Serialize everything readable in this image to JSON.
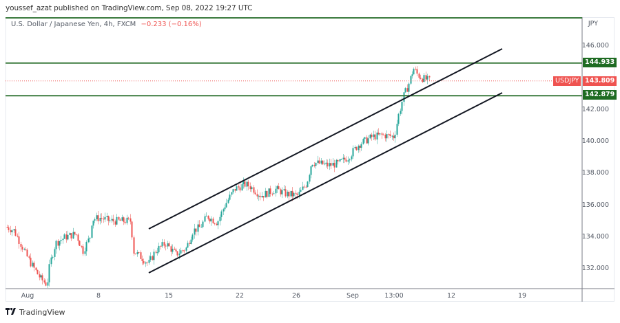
{
  "header": {
    "published_text": "youssef_azat published on TradingView.com, Sep 08, 2022 19:27 UTC"
  },
  "legend": {
    "title": "U.S. Dollar / Japanese Yen, 4h, FXCM",
    "change": "−0.233 (−0.16%)"
  },
  "price_scale": {
    "currency": "JPY",
    "ticks": [
      "146.000",
      "142.000",
      "140.000",
      "138.000",
      "136.000",
      "134.000",
      "132.000"
    ]
  },
  "tags": {
    "resistance": "144.933",
    "current_symbol": "USDJPY",
    "current_price": "143.809",
    "support": "142.879"
  },
  "time_scale": {
    "ticks": [
      "Aug",
      "8",
      "15",
      "22",
      "26",
      "Sep",
      "13:00",
      "12",
      "19"
    ]
  },
  "footer": {
    "brand": "TradingView"
  },
  "colors": {
    "up": "#26a69a",
    "down": "#ef5350",
    "level_line": "#3b7a3e",
    "level_tag": "#1e6b22",
    "channel": "#131722",
    "price_tag": "#ef5350"
  },
  "chart_data": {
    "type": "candlestick",
    "title": "U.S. Dollar / Japanese Yen, 4h, FXCM",
    "symbol": "USDJPY",
    "timeframe": "4h",
    "last_price": 143.809,
    "change": -0.233,
    "change_pct": -0.16,
    "ylim": [
      130.8,
      147.7
    ],
    "y_ticks": [
      132,
      134,
      136,
      138,
      140,
      142,
      146
    ],
    "x_ticks": [
      "Aug",
      "8",
      "15",
      "22",
      "26",
      "Sep",
      "13:00",
      "12",
      "19"
    ],
    "price_path_keypoints": [
      {
        "x": "Jul 29",
        "close": 134.6
      },
      {
        "x": "Jul 30",
        "close": 134.4
      },
      {
        "x": "Aug 1",
        "close": 133.1
      },
      {
        "x": "Aug 1",
        "close": 132.3
      },
      {
        "x": "Aug 2",
        "close": 131.4
      },
      {
        "x": "Aug 2",
        "close": 131.0
      },
      {
        "x": "Aug 3",
        "close": 132.3
      },
      {
        "x": "Aug 3",
        "close": 133.6
      },
      {
        "x": "Aug 4",
        "close": 134.0
      },
      {
        "x": "Aug 5",
        "close": 134.2
      },
      {
        "x": "Aug 6",
        "close": 133.1
      },
      {
        "x": "Aug 7",
        "close": 134.0
      },
      {
        "x": "Aug 8",
        "close": 135.1
      },
      {
        "x": "Aug 8",
        "close": 135.2
      },
      {
        "x": "Aug 9",
        "close": 135.0
      },
      {
        "x": "Aug 10",
        "close": 135.0
      },
      {
        "x": "Aug 11",
        "close": 135.0
      },
      {
        "x": "Aug 11",
        "close": 133.1
      },
      {
        "x": "Aug 12",
        "close": 132.7
      },
      {
        "x": "Aug 13",
        "close": 132.3
      },
      {
        "x": "Aug 14",
        "close": 133.1
      },
      {
        "x": "Aug 15",
        "close": 133.6
      },
      {
        "x": "Aug 15",
        "close": 132.9
      },
      {
        "x": "Aug 16",
        "close": 133.3
      },
      {
        "x": "Aug 17",
        "close": 134.4
      },
      {
        "x": "Aug 18",
        "close": 134.6
      },
      {
        "x": "Aug 18",
        "close": 135.3
      },
      {
        "x": "Aug 19",
        "close": 134.9
      },
      {
        "x": "Aug 20",
        "close": 135.9
      },
      {
        "x": "Aug 21",
        "close": 137.0
      },
      {
        "x": "Aug 22",
        "close": 137.3
      },
      {
        "x": "Aug 23",
        "close": 137.2
      },
      {
        "x": "Aug 24",
        "close": 136.6
      },
      {
        "x": "Aug 24",
        "close": 136.7
      },
      {
        "x": "Aug 25",
        "close": 137.0
      },
      {
        "x": "Aug 26",
        "close": 136.7
      },
      {
        "x": "Aug 27",
        "close": 136.6
      },
      {
        "x": "Aug 28",
        "close": 137.4
      },
      {
        "x": "Aug 29",
        "close": 138.7
      },
      {
        "x": "Aug 29",
        "close": 138.6
      },
      {
        "x": "Aug 30",
        "close": 138.5
      },
      {
        "x": "Aug 31",
        "close": 138.6
      },
      {
        "x": "Sep 1",
        "close": 139.0
      },
      {
        "x": "Sep 1",
        "close": 139.8
      },
      {
        "x": "Sep 2",
        "close": 140.3
      },
      {
        "x": "Sep 3",
        "close": 140.4
      },
      {
        "x": "Sep 4",
        "close": 140.3
      },
      {
        "x": "Sep 5",
        "close": 141.6
      },
      {
        "x": "Sep 5",
        "close": 142.8
      },
      {
        "x": "Sep 6",
        "close": 143.5
      },
      {
        "x": "Sep 6",
        "close": 144.6
      },
      {
        "x": "Sep 7",
        "close": 144.2
      },
      {
        "x": "Sep 7",
        "close": 144.0
      },
      {
        "x": "Sep 8",
        "close": 143.9
      },
      {
        "x": "Sep 8",
        "close": 143.8
      }
    ],
    "horizontal_levels": [
      {
        "name": "resistance",
        "price": 144.933
      },
      {
        "name": "support",
        "price": 142.879
      },
      {
        "name": "upper_bound",
        "price": 147.7
      }
    ],
    "ascending_channel": {
      "upper": {
        "from": {
          "x": "Aug 12",
          "price": 134.5
        },
        "to": {
          "x": "Sep 17",
          "price": 145.8
        }
      },
      "lower": {
        "from": {
          "x": "Aug 12",
          "price": 131.7
        },
        "to": {
          "x": "Sep 17",
          "price": 143.0
        }
      }
    }
  }
}
